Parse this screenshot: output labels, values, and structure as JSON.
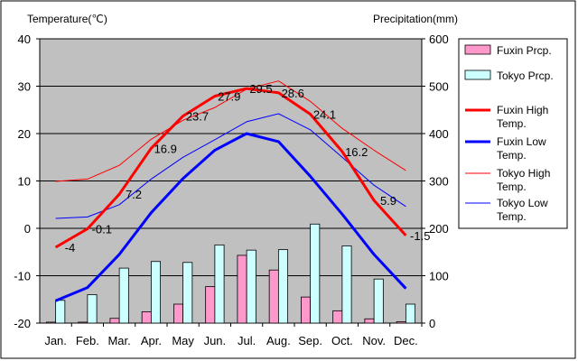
{
  "chart_data": {
    "type": "bar+line",
    "categories": [
      "Jan.",
      "Feb.",
      "Mar.",
      "Apr.",
      "May",
      "Jun.",
      "Jul.",
      "Aug.",
      "Sep.",
      "Oct.",
      "Nov.",
      "Dec."
    ],
    "y_left_title": "Temperature(℃)",
    "y_right_title": "Precipitation(mm)",
    "y_left_range": [
      -20,
      40
    ],
    "y_left_ticks": [
      "40",
      "30",
      "20",
      "10",
      "0",
      "-10",
      "-20"
    ],
    "y_right_range": [
      0,
      600
    ],
    "y_right_ticks": [
      "600",
      "500",
      "400",
      "300",
      "200",
      "100",
      "0"
    ],
    "grid": "horizontal",
    "legend_position": "right",
    "bars": [
      {
        "name": "Fuxin Prcp.",
        "color": "#ff99cc",
        "axis": "right",
        "values": [
          2,
          2,
          10,
          24,
          40,
          77,
          143,
          112,
          55,
          26,
          9,
          3
        ]
      },
      {
        "name": "Tokyo Prcp.",
        "color": "#ccffff",
        "axis": "right",
        "values": [
          48,
          60,
          116,
          130,
          128,
          165,
          154,
          155,
          209,
          163,
          93,
          40
        ]
      }
    ],
    "lines": [
      {
        "name": "Fuxin High Temp.",
        "color": "#ff0000",
        "width": 3,
        "axis": "left",
        "values": [
          -4,
          -0.1,
          7.2,
          16.9,
          23.7,
          27.9,
          29.5,
          28.6,
          24.1,
          16.2,
          5.9,
          -1.5
        ],
        "labels": [
          "-4",
          "-0.1",
          "7.2",
          "16.9",
          "23.7",
          "27.9",
          "29.5",
          "28.6",
          "24.1",
          "16.2",
          "5.9",
          "-1.5"
        ]
      },
      {
        "name": "Fuxin Low Temp.",
        "color": "#0000ff",
        "width": 3,
        "axis": "left",
        "values": [
          -15.3,
          -12.5,
          -5.5,
          3.3,
          10.5,
          16.5,
          20,
          18.3,
          11,
          3,
          -5.5,
          -12.7
        ]
      },
      {
        "name": "Tokyo High Temp.",
        "color": "#ff0000",
        "width": 1,
        "axis": "left",
        "values": [
          9.9,
          10.4,
          13.3,
          18.8,
          22.8,
          25.5,
          29.4,
          31.1,
          26.8,
          21.1,
          16.5,
          12.2
        ]
      },
      {
        "name": "Tokyo Low Temp.",
        "color": "#0000ff",
        "width": 1,
        "axis": "left",
        "values": [
          2.1,
          2.4,
          5,
          10.4,
          15,
          18.7,
          22.5,
          24.2,
          20.8,
          15,
          9.1,
          4.6
        ]
      }
    ],
    "legend": [
      {
        "label": "Fuxin Prcp.",
        "kind": "bar",
        "color": "#ff99cc"
      },
      {
        "label": "Tokyo Prcp.",
        "kind": "bar",
        "color": "#ccffff"
      },
      {
        "label": "Fuxin High Temp.",
        "kind": "line",
        "color": "#ff0000",
        "width": 3
      },
      {
        "label": "Fuxin Low Temp.",
        "kind": "line",
        "color": "#0000ff",
        "width": 3
      },
      {
        "label": "Tokyo High Temp.",
        "kind": "line",
        "color": "#ff0000",
        "width": 1
      },
      {
        "label": "Tokyo Low Temp.",
        "kind": "line",
        "color": "#0000ff",
        "width": 1
      }
    ],
    "colors": {
      "plot_background": "#c0c0c0",
      "gridline": "#000000"
    }
  }
}
